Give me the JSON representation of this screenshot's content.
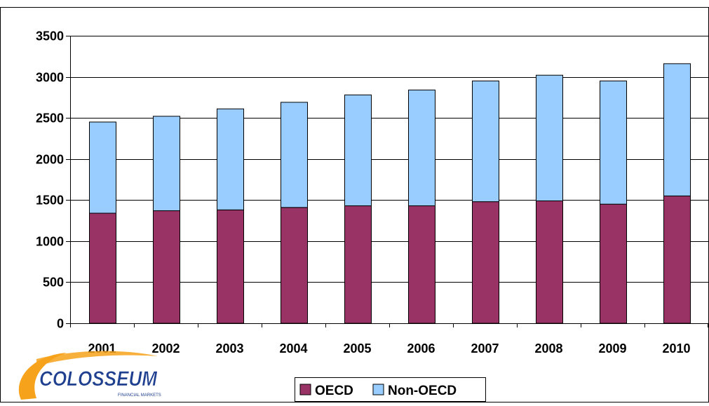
{
  "chart_data": {
    "type": "bar",
    "stacked": true,
    "categories": [
      "2001",
      "2002",
      "2003",
      "2004",
      "2005",
      "2006",
      "2007",
      "2008",
      "2009",
      "2010"
    ],
    "series": [
      {
        "name": "OECD",
        "values": [
          1340,
          1370,
          1380,
          1410,
          1430,
          1430,
          1480,
          1490,
          1450,
          1550
        ],
        "color": "#993366"
      },
      {
        "name": "Non-OECD",
        "values": [
          1110,
          1150,
          1230,
          1280,
          1350,
          1410,
          1470,
          1530,
          1500,
          1610
        ],
        "color": "#99ccff"
      }
    ],
    "ylim": [
      0,
      3500
    ],
    "yticks": [
      0,
      500,
      1000,
      1500,
      2000,
      2500,
      3000,
      3500
    ],
    "grid": true,
    "legend": "bottom-center",
    "title": "",
    "xlabel": "",
    "ylabel": ""
  },
  "logo": {
    "name": "COLOSSEUM",
    "tagline": "FINANCIAL MARKETS",
    "colors": {
      "text": "#1f3f8f",
      "swoosh": "#f7a21b"
    }
  },
  "colors": {
    "background": "#ffffff",
    "grid": "#000000",
    "bar_outline": "#000000"
  }
}
